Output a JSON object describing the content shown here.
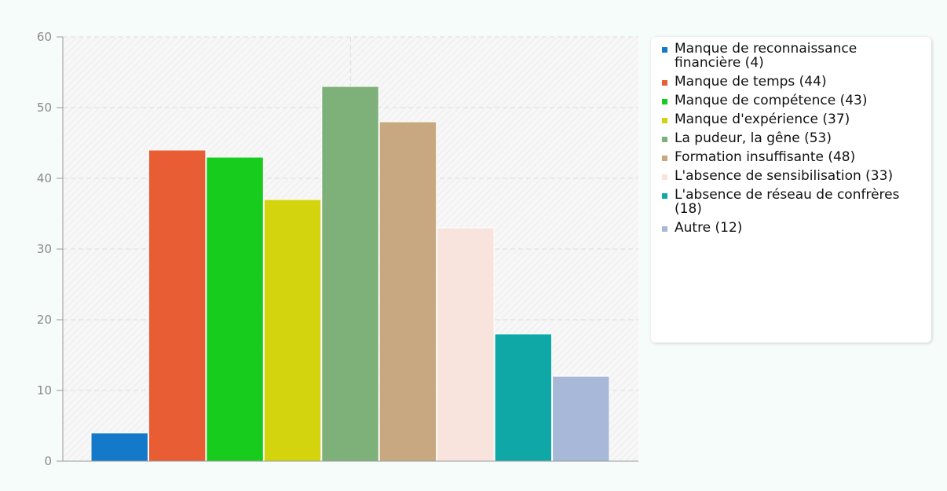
{
  "chart_data": {
    "type": "bar",
    "categories": [
      "Manque de reconnaissance financière (4)",
      "Manque de temps (44)",
      "Manque de compétence (43)",
      "Manque d'expérience (37)",
      "La pudeur, la gêne (53)",
      "Formation insuffisante (48)",
      "L'absence de sensibilisation (33)",
      "L'absence de réseau de confrères (18)",
      "Autre (12)"
    ],
    "values": [
      4,
      44,
      43,
      37,
      53,
      48,
      33,
      18,
      12
    ],
    "colors": [
      "#1479c9",
      "#e85d33",
      "#18cc1e",
      "#d4d40e",
      "#7eb07a",
      "#c8a880",
      "#f8e4dc",
      "#10a8a6",
      "#a8b8d8"
    ],
    "ylim": [
      0,
      60
    ],
    "yticks": [
      "0",
      "10",
      "20",
      "30",
      "40",
      "50",
      "60"
    ],
    "grid": true,
    "legend_position": "right",
    "title": "",
    "xlabel": "",
    "ylabel": ""
  }
}
